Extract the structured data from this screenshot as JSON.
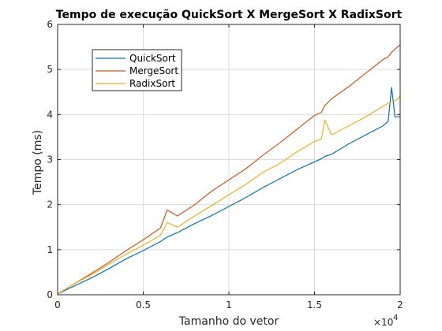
{
  "chart_data": {
    "type": "line",
    "title": "Tempo de execução QuickSort X MergeSort X RadixSort",
    "xlabel": "Tamanho do vetor",
    "ylabel": "Tempo (ms)",
    "x_exponent_label": "×10",
    "x_exponent_power": "4",
    "xlim": [
      0,
      2
    ],
    "ylim": [
      0,
      6
    ],
    "xticks": [
      0,
      0.5,
      1,
      1.5,
      2
    ],
    "xtick_labels": [
      "0",
      "0.5",
      "1",
      "1.5",
      "2"
    ],
    "yticks": [
      0,
      1,
      2,
      3,
      4,
      5,
      6
    ],
    "ytick_labels": [
      "0",
      "1",
      "2",
      "3",
      "4",
      "5",
      "6"
    ],
    "grid": true,
    "legend_position": "top-left",
    "x": [
      0,
      0.1,
      0.2,
      0.3,
      0.4,
      0.5,
      0.6,
      0.64,
      0.7,
      0.8,
      0.9,
      1.0,
      1.1,
      1.2,
      1.3,
      1.4,
      1.5,
      1.54,
      1.56,
      1.6,
      1.7,
      1.8,
      1.9,
      1.93,
      1.95,
      1.97,
      2.0
    ],
    "series": [
      {
        "name": "QuickSort",
        "color": "#0072BD",
        "values": [
          0.02,
          0.2,
          0.38,
          0.58,
          0.8,
          0.98,
          1.18,
          1.28,
          1.38,
          1.58,
          1.76,
          1.96,
          2.16,
          2.38,
          2.58,
          2.78,
          2.95,
          3.02,
          3.07,
          3.12,
          3.35,
          3.55,
          3.75,
          3.85,
          4.6,
          3.95,
          3.95
        ]
      },
      {
        "name": "MergeSort",
        "color": "#D95319",
        "values": [
          0.02,
          0.25,
          0.48,
          0.72,
          0.98,
          1.22,
          1.48,
          1.88,
          1.75,
          2.0,
          2.3,
          2.55,
          2.8,
          3.1,
          3.38,
          3.68,
          3.98,
          4.05,
          4.2,
          4.35,
          4.62,
          4.92,
          5.22,
          5.28,
          5.38,
          5.45,
          5.55
        ]
      },
      {
        "name": "RadixSort",
        "color": "#EDB120",
        "values": [
          0.02,
          0.25,
          0.45,
          0.68,
          0.9,
          1.1,
          1.32,
          1.6,
          1.5,
          1.75,
          1.98,
          2.22,
          2.45,
          2.72,
          2.92,
          3.18,
          3.4,
          3.45,
          3.88,
          3.55,
          3.75,
          3.95,
          4.18,
          4.25,
          4.28,
          4.3,
          4.4
        ]
      }
    ]
  }
}
